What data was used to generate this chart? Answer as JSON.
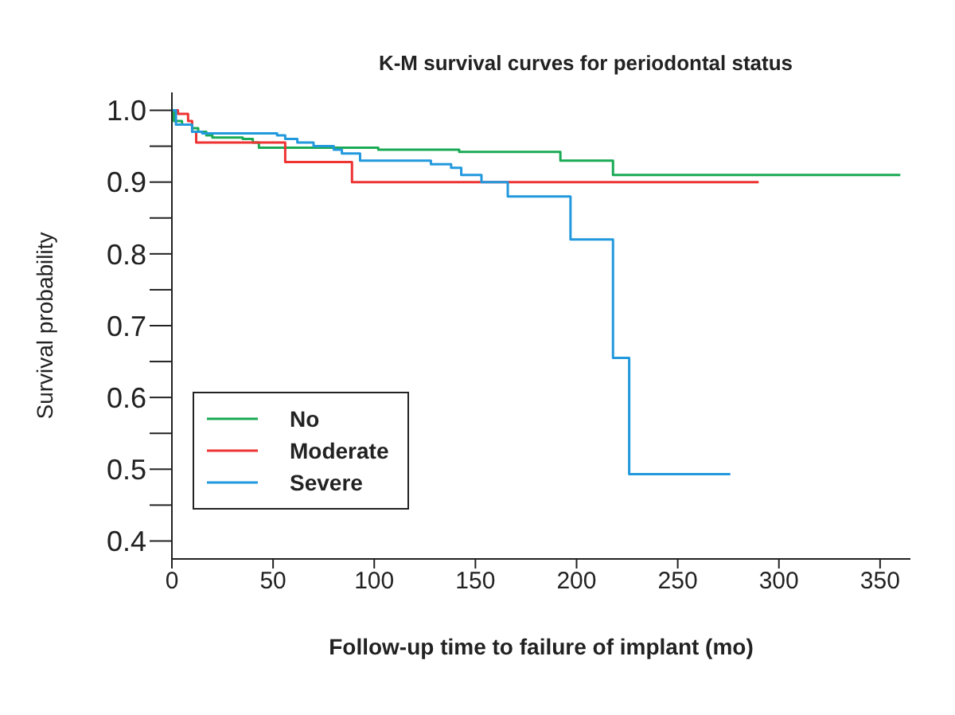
{
  "chart_data": {
    "type": "step",
    "title": "K-M survival curves for periodontal status",
    "xlabel": "Follow-up time to failure of implant (mo)",
    "ylabel": "Survival probability",
    "xlim": [
      0,
      365
    ],
    "xticks": [
      0,
      50,
      100,
      150,
      200,
      250,
      300,
      350
    ],
    "ylim": [
      0.375,
      1.025
    ],
    "yticks": [
      {
        "value": 0.4,
        "label": "0.4"
      },
      {
        "value": 0.45,
        "label": null
      },
      {
        "value": 0.5,
        "label": "0.5"
      },
      {
        "value": 0.55,
        "label": null
      },
      {
        "value": 0.6,
        "label": "0.6"
      },
      {
        "value": 0.65,
        "label": null
      },
      {
        "value": 0.7,
        "label": "0.7"
      },
      {
        "value": 0.75,
        "label": null
      },
      {
        "value": 0.8,
        "label": "0.8"
      },
      {
        "value": 0.85,
        "label": null
      },
      {
        "value": 0.9,
        "label": "0.9"
      },
      {
        "value": 0.95,
        "label": null
      },
      {
        "value": 1.0,
        "label": "1.0"
      }
    ],
    "grid": false,
    "legend": "left",
    "marker": "none",
    "line_style": "solid",
    "series": [
      {
        "name": "No",
        "color": "#1aaa55",
        "x": [
          0,
          1,
          5,
          10,
          13,
          17,
          20,
          35,
          40,
          43,
          102,
          142,
          192,
          218,
          360
        ],
        "values": [
          1.0,
          0.985,
          0.98,
          0.975,
          0.97,
          0.965,
          0.962,
          0.96,
          0.955,
          0.948,
          0.945,
          0.942,
          0.93,
          0.91,
          0.91
        ]
      },
      {
        "name": "Moderate",
        "color": "#ee3333",
        "x": [
          0,
          3,
          8,
          10,
          12,
          56,
          89,
          290
        ],
        "values": [
          1.0,
          0.995,
          0.985,
          0.97,
          0.955,
          0.928,
          0.9,
          0.9
        ]
      },
      {
        "name": "Severe",
        "color": "#2299dd",
        "x": [
          0,
          2,
          10,
          15,
          52,
          56,
          62,
          70,
          80,
          84,
          93,
          128,
          138,
          143,
          153,
          166,
          197,
          218,
          226,
          276
        ],
        "values": [
          1.0,
          0.98,
          0.97,
          0.968,
          0.965,
          0.96,
          0.955,
          0.95,
          0.945,
          0.94,
          0.93,
          0.925,
          0.92,
          0.91,
          0.9,
          0.88,
          0.82,
          0.655,
          0.493,
          0.493
        ]
      }
    ]
  }
}
